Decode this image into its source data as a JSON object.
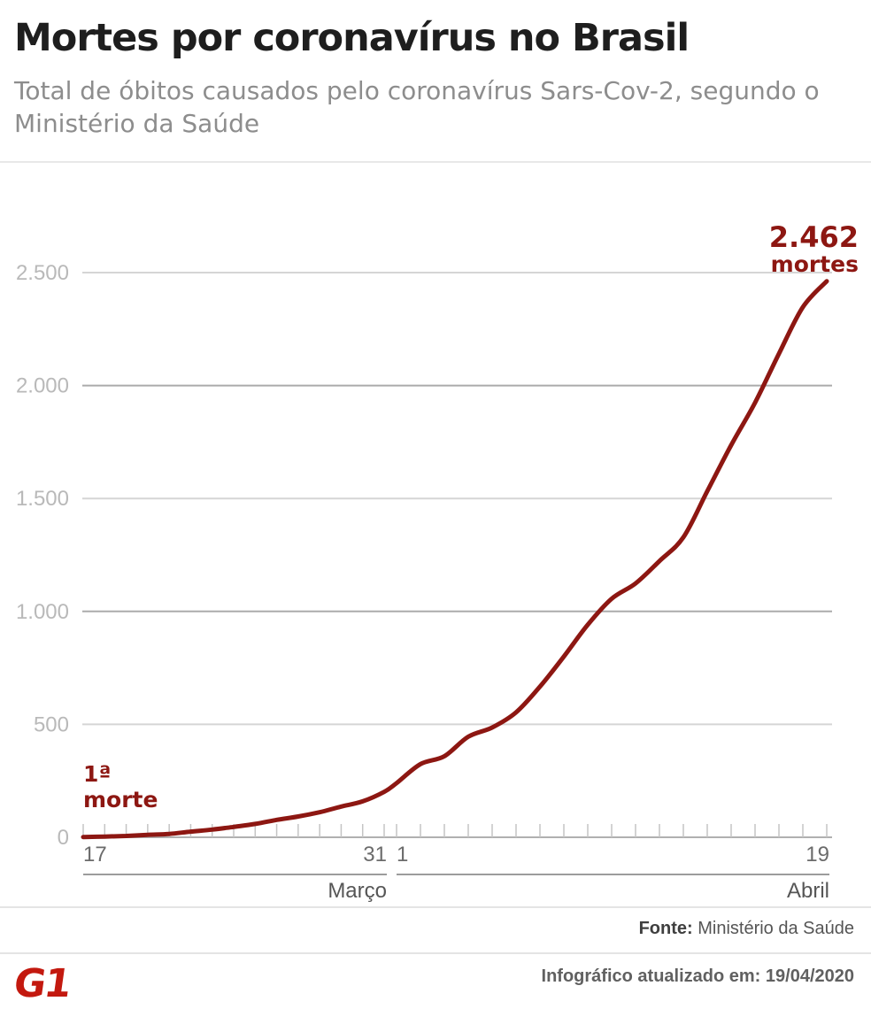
{
  "header": {
    "title": "Mortes por coronavírus no Brasil",
    "subtitle": "Total de óbitos causados pelo coronavírus Sars-Cov-2, segundo o Ministério da Saúde"
  },
  "chart_data": {
    "type": "line",
    "title": "Mortes por coronavírus no Brasil",
    "xlabel": "",
    "ylabel": "",
    "ylim": [
      0,
      2500
    ],
    "grid": true,
    "line_color": "#8d1712",
    "y_ticks": {
      "values": [
        0,
        500,
        1000,
        1500,
        2000,
        2500
      ],
      "labels": [
        "0",
        "500",
        "1.000",
        "1.500",
        "2.000",
        "2.500"
      ]
    },
    "months": [
      {
        "name": "Março",
        "start_label": "17",
        "end_label": "31",
        "days": 15
      },
      {
        "name": "Abril",
        "start_label": "1",
        "end_label": "19",
        "days": 19
      }
    ],
    "values": [
      1,
      3,
      6,
      11,
      15,
      25,
      34,
      46,
      59,
      77,
      92,
      111,
      136,
      159,
      201,
      240,
      324,
      359,
      445,
      486,
      553,
      667,
      800,
      941,
      1056,
      1124,
      1223,
      1328,
      1532,
      1736,
      1924,
      2141,
      2347,
      2462
    ],
    "annotations": {
      "start": {
        "line1": "1ª",
        "line2": "morte"
      },
      "end": {
        "value": "2.462",
        "label": "mortes"
      }
    }
  },
  "footer": {
    "source_label": "Fonte:",
    "source_value": " Ministério da Saúde",
    "updated": "Infográfico atualizado em: 19/04/2020"
  },
  "logo": {
    "text": "G1",
    "color": "#c3190f"
  }
}
